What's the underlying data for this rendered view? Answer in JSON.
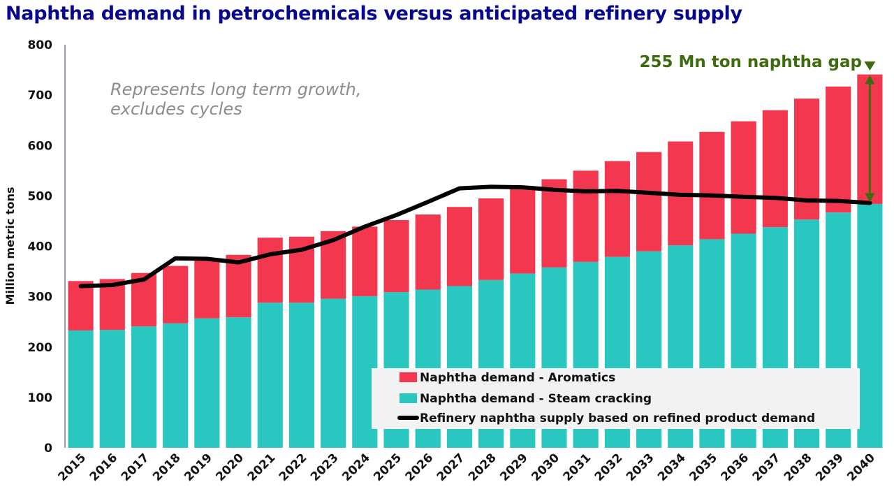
{
  "title": "Naphtha demand in petrochemicals versus anticipated refinery supply",
  "annotation_note_line1": "Represents long term growth,",
  "annotation_note_line2": "excludes cycles",
  "gap_label": "255 Mn ton naphtha gap",
  "colors": {
    "aromatics": "#f2374f",
    "steam_cracking": "#29c7c0",
    "supply_line": "#000000",
    "gap_arrow": "#3d6b0d",
    "title": "#08088e"
  },
  "chart_data": {
    "type": "bar",
    "stacked": true,
    "categories": [
      "2015",
      "2016",
      "2017",
      "2018",
      "2019",
      "2020",
      "2021",
      "2022",
      "2023",
      "2024",
      "2025",
      "2026",
      "2027",
      "2028",
      "2029",
      "2030",
      "2031",
      "2032",
      "2033",
      "2034",
      "2035",
      "2036",
      "2037",
      "2038",
      "2039",
      "2040"
    ],
    "series": [
      {
        "name": "Naphtha demand - Steam cracking",
        "kind": "bar",
        "values": [
          233,
          234,
          241,
          247,
          257,
          259,
          288,
          288,
          296,
          301,
          309,
          314,
          321,
          333,
          346,
          358,
          369,
          379,
          390,
          402,
          414,
          425,
          438,
          453,
          467,
          484
        ]
      },
      {
        "name": "Naphtha demand - Aromatics",
        "kind": "bar",
        "values": [
          98,
          101,
          106,
          114,
          115,
          124,
          129,
          131,
          134,
          138,
          143,
          149,
          157,
          162,
          171,
          175,
          181,
          190,
          197,
          206,
          213,
          223,
          232,
          240,
          250,
          257
        ]
      },
      {
        "name": "Refinery naphtha supply based on refined product demand",
        "kind": "line",
        "values": [
          321,
          323,
          334,
          376,
          375,
          368,
          384,
          393,
          412,
          439,
          462,
          488,
          515,
          518,
          517,
          512,
          509,
          510,
          506,
          502,
          501,
          498,
          496,
          491,
          490,
          486
        ]
      }
    ],
    "xlabel": "",
    "ylabel": "Million metric tons",
    "ylim": [
      0,
      800
    ],
    "yticks": [
      0,
      100,
      200,
      300,
      400,
      500,
      600,
      700,
      800
    ],
    "grid": false,
    "legend": {
      "placement": "bottom-right",
      "entries": [
        "Naphtha demand - Aromatics",
        "Naphtha demand - Steam cracking",
        "Refinery naphtha supply based on refined product demand"
      ]
    }
  }
}
